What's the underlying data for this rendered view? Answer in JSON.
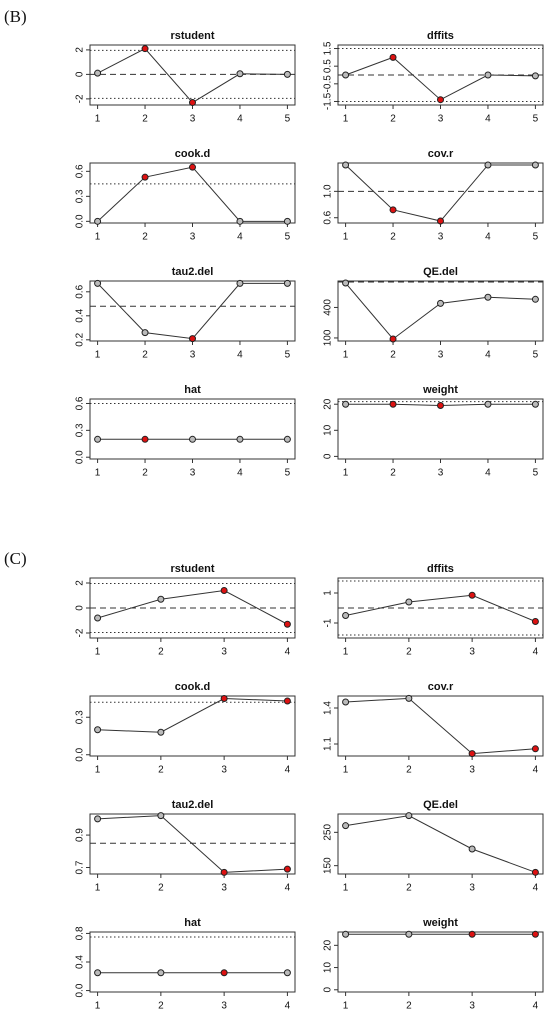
{
  "panel_labels": [
    "(B)",
    "(C)"
  ],
  "chart_data": [
    {
      "type": "line",
      "title": "rstudent",
      "x": [
        1,
        2,
        3,
        4,
        5
      ],
      "values": [
        0.1,
        2.1,
        -2.3,
        0.05,
        0
      ],
      "point_colors": [
        "#bbbbbb",
        "#dd1111",
        "#dd1111",
        "#bbbbbb",
        "#bbbbbb"
      ],
      "xlim": [
        0.84,
        5.16
      ],
      "xticks": [
        1,
        2,
        3,
        4,
        5
      ],
      "ylim": [
        -2.5,
        2.4
      ],
      "yticks": [
        -2,
        0,
        2
      ],
      "reference_lines": [
        {
          "value": 1.96,
          "style": "dotted"
        },
        {
          "value": -1.96,
          "style": "dotted"
        },
        {
          "value": 0,
          "style": "dashed"
        }
      ]
    },
    {
      "type": "line",
      "title": "dffits",
      "x": [
        1,
        2,
        3,
        4,
        5
      ],
      "values": [
        0,
        1,
        -1.4,
        0,
        -0.05
      ],
      "point_colors": [
        "#bbbbbb",
        "#dd1111",
        "#dd1111",
        "#bbbbbb",
        "#bbbbbb"
      ],
      "xlim": [
        0.84,
        5.16
      ],
      "xticks": [
        1,
        2,
        3,
        4,
        5
      ],
      "ylim": [
        -1.7,
        1.7
      ],
      "yticks": [
        -1.5,
        -0.5,
        0.5,
        1.5
      ],
      "reference_lines": [
        {
          "value": 1.5,
          "style": "dotted"
        },
        {
          "value": -1.5,
          "style": "dotted"
        },
        {
          "value": 0,
          "style": "dashed"
        }
      ]
    },
    {
      "type": "line",
      "title": "cook.d",
      "x": [
        1,
        2,
        3,
        4,
        5
      ],
      "values": [
        0,
        0.53,
        0.65,
        0,
        0
      ],
      "point_colors": [
        "#bbbbbb",
        "#dd1111",
        "#dd1111",
        "#bbbbbb",
        "#bbbbbb"
      ],
      "xlim": [
        0.84,
        5.16
      ],
      "xticks": [
        1,
        2,
        3,
        4,
        5
      ],
      "ylim": [
        -0.02,
        0.7
      ],
      "yticks": [
        {
          "value": 0,
          "label": "0.0"
        },
        0.3,
        0.6
      ],
      "reference_lines": [
        {
          "value": 0.45,
          "style": "dotted"
        }
      ]
    },
    {
      "type": "line",
      "title": "cov.r",
      "x": [
        1,
        2,
        3,
        4,
        5
      ],
      "values": [
        1.4,
        0.72,
        0.55,
        1.4,
        1.4
      ],
      "point_colors": [
        "#bbbbbb",
        "#dd1111",
        "#dd1111",
        "#bbbbbb",
        "#bbbbbb"
      ],
      "xlim": [
        0.84,
        5.16
      ],
      "xticks": [
        1,
        2,
        3,
        4,
        5
      ],
      "ylim": [
        0.52,
        1.43
      ],
      "yticks": [
        0.6,
        {
          "value": 1,
          "label": "1.0"
        }
      ],
      "reference_lines": [
        {
          "value": 1,
          "style": "dashed"
        }
      ]
    },
    {
      "type": "line",
      "title": "tau2.del",
      "x": [
        1,
        2,
        3,
        4,
        5
      ],
      "values": [
        0.67,
        0.26,
        0.21,
        0.67,
        0.67
      ],
      "point_colors": [
        "#bbbbbb",
        "#bbbbbb",
        "#dd1111",
        "#bbbbbb",
        "#bbbbbb"
      ],
      "xlim": [
        0.84,
        5.16
      ],
      "xticks": [
        1,
        2,
        3,
        4,
        5
      ],
      "ylim": [
        0.19,
        0.69
      ],
      "yticks": [
        0.2,
        0.4,
        0.6
      ],
      "reference_lines": [
        {
          "value": 0.48,
          "style": "dashed"
        }
      ]
    },
    {
      "type": "line",
      "title": "QE.del",
      "x": [
        1,
        2,
        3,
        4,
        5
      ],
      "values": [
        640,
        90,
        440,
        500,
        480
      ],
      "point_colors": [
        "#bbbbbb",
        "#dd1111",
        "#bbbbbb",
        "#bbbbbb",
        "#bbbbbb"
      ],
      "xlim": [
        0.84,
        5.16
      ],
      "xticks": [
        1,
        2,
        3,
        4,
        5
      ],
      "ylim": [
        70,
        660
      ],
      "yticks": [
        100,
        400
      ],
      "reference_lines": [
        {
          "value": 650,
          "style": "dashed"
        }
      ]
    },
    {
      "type": "line",
      "title": "hat",
      "x": [
        1,
        2,
        3,
        4,
        5
      ],
      "values": [
        0.2,
        0.2,
        0.2,
        0.2,
        0.2
      ],
      "point_colors": [
        "#bbbbbb",
        "#dd1111",
        "#bbbbbb",
        "#bbbbbb",
        "#bbbbbb"
      ],
      "xlim": [
        0.84,
        5.16
      ],
      "xticks": [
        1,
        2,
        3,
        4,
        5
      ],
      "ylim": [
        -0.02,
        0.65
      ],
      "yticks": [
        {
          "value": 0,
          "label": "0.0"
        },
        0.3,
        0.6
      ],
      "reference_lines": [
        {
          "value": 0.6,
          "style": "dotted"
        }
      ]
    },
    {
      "type": "line",
      "title": "weight",
      "x": [
        1,
        2,
        3,
        4,
        5
      ],
      "values": [
        20,
        20,
        19.5,
        20,
        20
      ],
      "point_colors": [
        "#bbbbbb",
        "#dd1111",
        "#dd1111",
        "#bbbbbb",
        "#bbbbbb"
      ],
      "xlim": [
        0.84,
        5.16
      ],
      "xticks": [
        1,
        2,
        3,
        4,
        5
      ],
      "ylim": [
        -1,
        22
      ],
      "yticks": [
        0,
        10,
        20
      ],
      "reference_lines": [
        {
          "value": 21,
          "style": "dotted"
        }
      ]
    },
    {
      "type": "line",
      "title": "rstudent",
      "x": [
        1,
        2,
        3,
        4
      ],
      "values": [
        -0.8,
        0.7,
        1.4,
        -1.3
      ],
      "point_colors": [
        "#bbbbbb",
        "#bbbbbb",
        "#dd1111",
        "#dd1111"
      ],
      "xlim": [
        0.88,
        4.12
      ],
      "xticks": [
        1,
        2,
        3,
        4
      ],
      "ylim": [
        -2.4,
        2.4
      ],
      "yticks": [
        -2,
        0,
        2
      ],
      "reference_lines": [
        {
          "value": 1.96,
          "style": "dotted"
        },
        {
          "value": -1.96,
          "style": "dotted"
        },
        {
          "value": 0,
          "style": "dashed"
        }
      ]
    },
    {
      "type": "line",
      "title": "dffits",
      "x": [
        1,
        2,
        3,
        4
      ],
      "values": [
        -0.5,
        0.4,
        0.85,
        -0.9
      ],
      "point_colors": [
        "#bbbbbb",
        "#bbbbbb",
        "#dd1111",
        "#dd1111"
      ],
      "xlim": [
        0.88,
        4.12
      ],
      "xticks": [
        1,
        2,
        3,
        4
      ],
      "ylim": [
        -2,
        2
      ],
      "yticks": [
        -1,
        1
      ],
      "reference_lines": [
        {
          "value": 1.8,
          "style": "dotted"
        },
        {
          "value": -1.8,
          "style": "dotted"
        },
        {
          "value": 0,
          "style": "dashed"
        }
      ]
    },
    {
      "type": "line",
      "title": "cook.d",
      "x": [
        1,
        2,
        3,
        4
      ],
      "values": [
        0.2,
        0.18,
        0.45,
        0.43
      ],
      "point_colors": [
        "#bbbbbb",
        "#bbbbbb",
        "#dd1111",
        "#dd1111"
      ],
      "xlim": [
        0.88,
        4.12
      ],
      "xticks": [
        1,
        2,
        3,
        4
      ],
      "ylim": [
        -0.01,
        0.47
      ],
      "yticks": [
        {
          "value": 0,
          "label": "0.0"
        },
        0.3
      ],
      "reference_lines": [
        {
          "value": 0.42,
          "style": "dotted"
        }
      ]
    },
    {
      "type": "line",
      "title": "cov.r",
      "x": [
        1,
        2,
        3,
        4
      ],
      "values": [
        1.45,
        1.48,
        1.02,
        1.06
      ],
      "point_colors": [
        "#bbbbbb",
        "#bbbbbb",
        "#dd1111",
        "#dd1111"
      ],
      "xlim": [
        0.88,
        4.12
      ],
      "xticks": [
        1,
        2,
        3,
        4
      ],
      "ylim": [
        1,
        1.5
      ],
      "yticks": [
        1.1,
        1.4
      ],
      "reference_lines": []
    },
    {
      "type": "line",
      "title": "tau2.del",
      "x": [
        1,
        2,
        3,
        4
      ],
      "values": [
        1,
        1.02,
        0.67,
        0.69
      ],
      "point_colors": [
        "#bbbbbb",
        "#bbbbbb",
        "#dd1111",
        "#dd1111"
      ],
      "xlim": [
        0.88,
        4.12
      ],
      "xticks": [
        1,
        2,
        3,
        4
      ],
      "ylim": [
        0.66,
        1.03
      ],
      "yticks": [
        0.7,
        0.9
      ],
      "reference_lines": [
        {
          "value": 0.85,
          "style": "dashed"
        }
      ]
    },
    {
      "type": "line",
      "title": "QE.del",
      "x": [
        1,
        2,
        3,
        4
      ],
      "values": [
        270,
        300,
        200,
        130
      ],
      "point_colors": [
        "#bbbbbb",
        "#bbbbbb",
        "#bbbbbb",
        "#dd1111"
      ],
      "xlim": [
        0.88,
        4.12
      ],
      "xticks": [
        1,
        2,
        3,
        4
      ],
      "ylim": [
        125,
        305
      ],
      "yticks": [
        150,
        250
      ],
      "reference_lines": []
    },
    {
      "type": "line",
      "title": "hat",
      "x": [
        1,
        2,
        3,
        4
      ],
      "values": [
        0.25,
        0.25,
        0.25,
        0.25
      ],
      "point_colors": [
        "#bbbbbb",
        "#bbbbbb",
        "#dd1111",
        "#bbbbbb"
      ],
      "xlim": [
        0.88,
        4.12
      ],
      "xticks": [
        1,
        2,
        3,
        4
      ],
      "ylim": [
        -0.02,
        0.82
      ],
      "yticks": [
        {
          "value": 0,
          "label": "0.0"
        },
        0.4,
        0.8
      ],
      "reference_lines": [
        {
          "value": 0.75,
          "style": "dotted"
        }
      ]
    },
    {
      "type": "line",
      "title": "weight",
      "x": [
        1,
        2,
        3,
        4
      ],
      "values": [
        25,
        25,
        25,
        25
      ],
      "point_colors": [
        "#bbbbbb",
        "#bbbbbb",
        "#dd1111",
        "#dd1111"
      ],
      "xlim": [
        0.88,
        4.12
      ],
      "xticks": [
        1,
        2,
        3,
        4
      ],
      "ylim": [
        -1,
        26
      ],
      "yticks": [
        0,
        10,
        20
      ],
      "reference_lines": []
    }
  ]
}
